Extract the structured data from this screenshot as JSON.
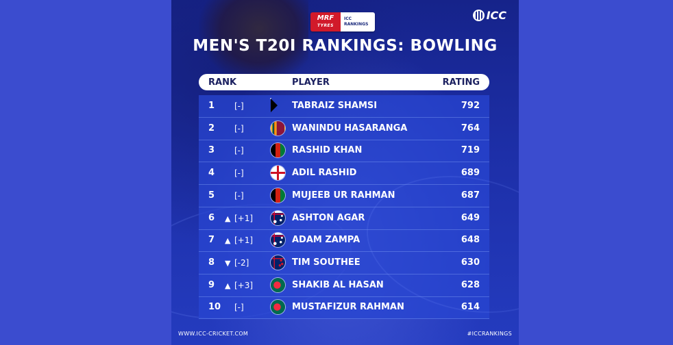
{
  "sponsor": {
    "brand": "MRF",
    "brand_sub": "TYRES",
    "product_line1": "ICC",
    "product_line2": "RANKINGS"
  },
  "logo": {
    "text": "ICC"
  },
  "title": "MEN'S T20I RANKINGS: BOWLING",
  "columns": {
    "rank": "RANK",
    "player": "PLAYER",
    "rating": "RATING"
  },
  "rows": [
    {
      "rank": "1",
      "arrow": "",
      "move": "[-]",
      "flag": "south-africa",
      "name": "TABRAIZ SHAMSI",
      "rating": "792"
    },
    {
      "rank": "2",
      "arrow": "",
      "move": "[-]",
      "flag": "sri-lanka",
      "name": "WANINDU HASARANGA",
      "rating": "764"
    },
    {
      "rank": "3",
      "arrow": "",
      "move": "[-]",
      "flag": "afghanistan",
      "name": "RASHID KHAN",
      "rating": "719"
    },
    {
      "rank": "4",
      "arrow": "",
      "move": "[-]",
      "flag": "england",
      "name": "ADIL RASHID",
      "rating": "689"
    },
    {
      "rank": "5",
      "arrow": "",
      "move": "[-]",
      "flag": "afghanistan",
      "name": "MUJEEB UR RAHMAN",
      "rating": "687"
    },
    {
      "rank": "6",
      "arrow": "▲",
      "move": "[+1]",
      "flag": "australia",
      "name": "ASHTON AGAR",
      "rating": "649"
    },
    {
      "rank": "7",
      "arrow": "▲",
      "move": "[+1]",
      "flag": "australia",
      "name": "ADAM ZAMPA",
      "rating": "648"
    },
    {
      "rank": "8",
      "arrow": "▼",
      "move": "[-2]",
      "flag": "new-zealand",
      "name": "TIM SOUTHEE",
      "rating": "630"
    },
    {
      "rank": "9",
      "arrow": "▲",
      "move": "[+3]",
      "flag": "bangladesh",
      "name": "SHAKIB AL HASAN",
      "rating": "628"
    },
    {
      "rank": "10",
      "arrow": "",
      "move": "[-]",
      "flag": "bangladesh",
      "name": "MUSTAFIZUR RAHMAN",
      "rating": "614"
    }
  ],
  "footer": {
    "website": "WWW.ICC-CRICKET.COM",
    "hashtag": "#ICCRANKINGS"
  },
  "colors": {
    "background": "#3b4ccf",
    "card": "#1d2fa8",
    "header_bar": "#ffffff",
    "header_text": "#1b2060"
  }
}
